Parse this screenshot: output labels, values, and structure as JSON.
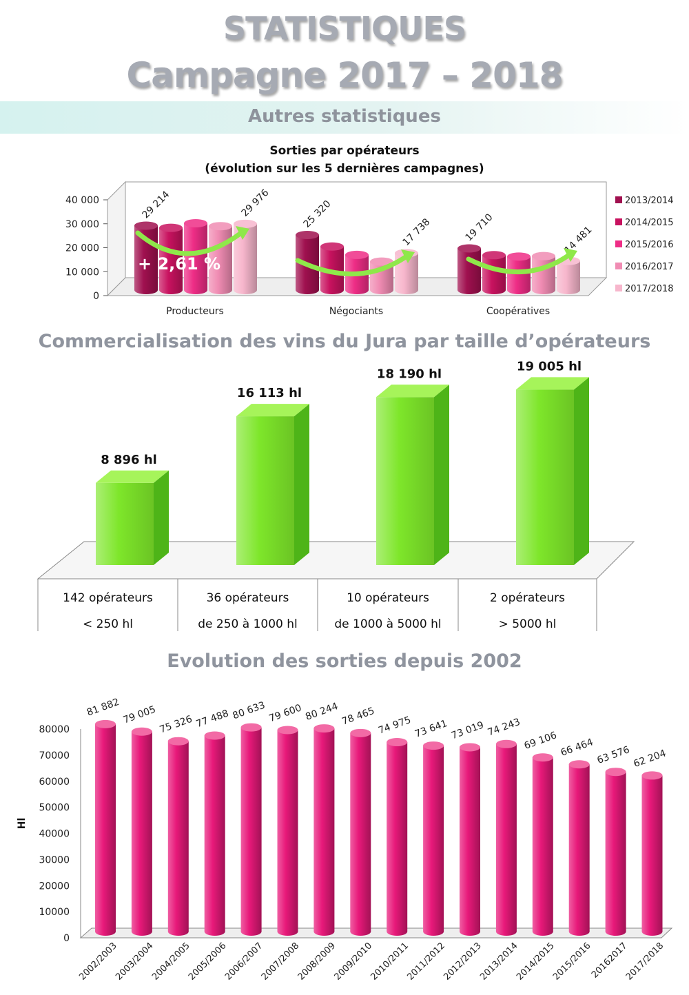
{
  "header": {
    "title_line1": "STATISTIQUES",
    "title_line2": "Campagne 2017 – 2018",
    "band_label": "Autres statistiques"
  },
  "colors": {
    "series": [
      "#a0104f",
      "#c8125f",
      "#ee2d86",
      "#f08cb3",
      "#f7b6cc"
    ],
    "green": "#7ee62a",
    "pink": "#e8197a",
    "arrow": "#8fe84a"
  },
  "chart_data": [
    {
      "type": "bar",
      "title": "Sorties par opérateurs",
      "subtitle": "(évolution sur les 5 dernières campagnes)",
      "categories": [
        "Producteurs",
        "Négociants",
        "Coopératives"
      ],
      "series": [
        {
          "name": "2013/2014",
          "values": [
            29214,
            25320,
            19710
          ]
        },
        {
          "name": "2014/2015",
          "values": [
            28300,
            20500,
            16900
          ]
        },
        {
          "name": "2015/2016",
          "values": [
            30200,
            17000,
            16300
          ]
        },
        {
          "name": "2016/2017",
          "values": [
            29000,
            14200,
            16500
          ]
        },
        {
          "name": "2017/2018",
          "values": [
            29976,
            17738,
            14481
          ]
        }
      ],
      "value_labels": {
        "Producteurs": [
          "29 214",
          "29 976"
        ],
        "Négociants": [
          "25 320",
          "17 738"
        ],
        "Coopératives": [
          "19 710",
          "14 481"
        ]
      },
      "yticks": [
        "0",
        "10 000",
        "20 000",
        "30 000",
        "40 000"
      ],
      "ylim": [
        0,
        40000
      ],
      "annotation": "+ 2,61 %",
      "legend_position": "right"
    },
    {
      "type": "bar",
      "title": "Commercialisation des vins du Jura par taille d’opérateurs",
      "categories": [
        {
          "line1": "142 opérateurs",
          "line2": "< 250 hl"
        },
        {
          "line1": "36 opérateurs",
          "line2": "de 250 à 1000 hl"
        },
        {
          "line1": "10 opérateurs",
          "line2": "de 1000 à 5000 hl"
        },
        {
          "line1": "2 opérateurs",
          "line2": "> 5000 hl"
        }
      ],
      "values": [
        8896,
        16113,
        18190,
        19005
      ],
      "labels": [
        "8 896 hl",
        "16 113 hl",
        "18 190 hl",
        "19 005 hl"
      ]
    },
    {
      "type": "bar",
      "title": "Evolution des sorties depuis 2002",
      "ylabel": "Hl",
      "ylim": [
        0,
        80000
      ],
      "yticks": [
        "0",
        "10000",
        "20000",
        "30000",
        "40000",
        "50000",
        "60000",
        "70000",
        "80000"
      ],
      "categories": [
        "2002/2003",
        "2003/2004",
        "2004/2005",
        "2005/2006",
        "2006/2007",
        "2007/2008",
        "2008/2009",
        "2009/2010",
        "2010/2011",
        "2011/2012",
        "2012/2013",
        "2013/2014",
        "2014/2015",
        "2015/2016",
        "20162017",
        "2017/2018"
      ],
      "values": [
        81882,
        79005,
        75326,
        77488,
        80633,
        79600,
        80244,
        78465,
        74975,
        73641,
        73019,
        74243,
        69106,
        66464,
        63576,
        62204
      ],
      "labels": [
        "81 882",
        "79 005",
        "75 326",
        "77 488",
        "80 633",
        "79 600",
        "80 244",
        "78 465",
        "74 975",
        "73 641",
        "73 019",
        "74 243",
        "69 106",
        "66 464",
        "63 576",
        "62 204"
      ]
    }
  ]
}
